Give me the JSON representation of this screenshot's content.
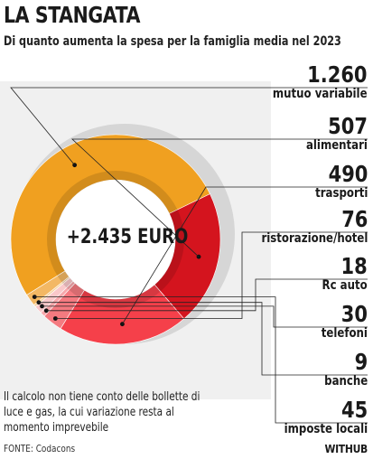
{
  "header": {
    "title": "LA STANGATA",
    "subtitle": "Di quanto aumenta la spesa per la famiglia media nel 2023"
  },
  "center_label": "+2.435 EURO",
  "note": "Il calcolo non tiene conto delle bollette di luce e gas, la cui variazione resta al momento imprevebile",
  "source": "FONTE: Codacons",
  "brand": "WITHUB",
  "chart_data": {
    "type": "pie",
    "donut": true,
    "total_label": "+2.435 EURO",
    "slices": [
      {
        "label": "mutuo variabile",
        "value": 1260,
        "display": "1.260",
        "color": "#f0a020"
      },
      {
        "label": "alimentari",
        "value": 507,
        "display": "507",
        "color": "#d4141e"
      },
      {
        "label": "trasporti",
        "value": 490,
        "display": "490",
        "color": "#f5404a"
      },
      {
        "label": "ristorazione/hotel",
        "value": 76,
        "display": "76",
        "color": "#f47a80"
      },
      {
        "label": "Rc auto",
        "value": 18,
        "display": "18",
        "color": "#f7a8ac"
      },
      {
        "label": "telefoni",
        "value": 30,
        "display": "30",
        "color": "#f9c8ca"
      },
      {
        "label": "banche",
        "value": 9,
        "display": "9",
        "color": "#f6d2a0"
      },
      {
        "label": "imposte locali",
        "value": 45,
        "display": "45",
        "color": "#f3b864"
      }
    ]
  }
}
